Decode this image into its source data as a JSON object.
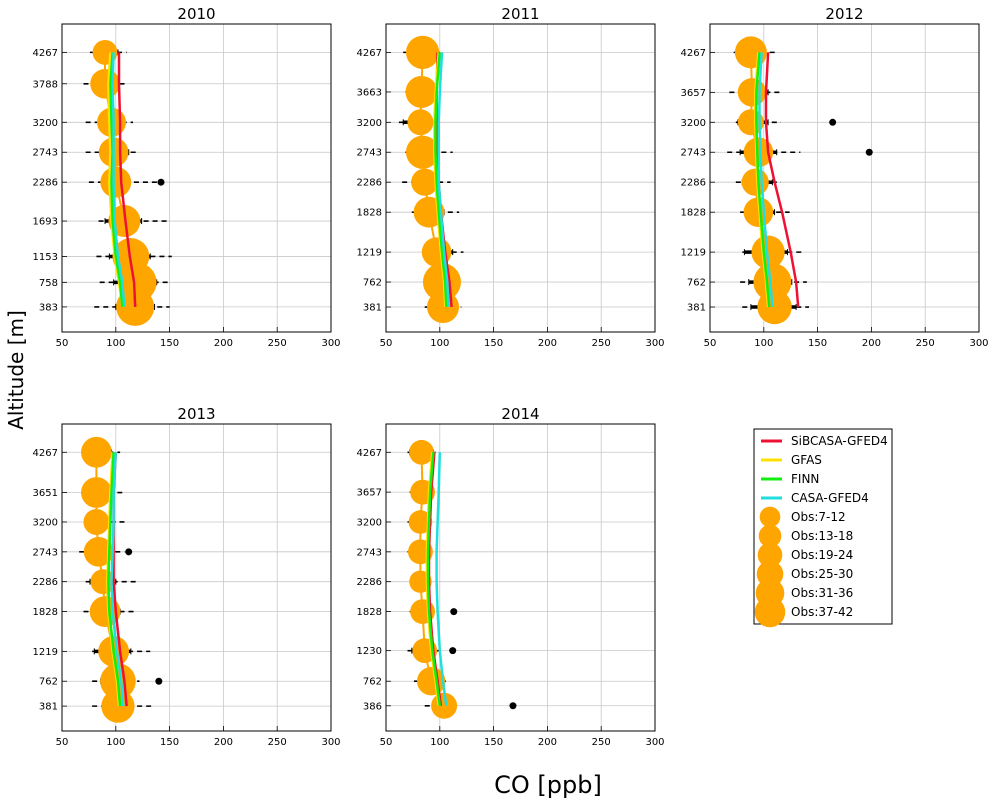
{
  "figure": {
    "xlabel": "CO [ppb]",
    "ylabel": "Altitude [m]"
  },
  "chart_data": [
    {
      "type": "line",
      "title": "2010",
      "xlim": [
        50,
        300
      ],
      "xticks": [
        50,
        100,
        150,
        200,
        250,
        300
      ],
      "ylim": [
        0,
        4700
      ],
      "altitudes": [
        383,
        758,
        1153,
        1693,
        2286,
        2743,
        3200,
        3788,
        4267
      ],
      "series": [
        {
          "name": "SiBCASA-GFED4",
          "color": "#ee1133",
          "values": [
            118,
            117,
            113,
            109,
            105,
            104,
            104,
            103,
            103
          ]
        },
        {
          "name": "GFAS",
          "color": "#ffe000",
          "values": [
            106,
            103,
            99,
            96,
            94,
            95,
            94,
            93,
            95
          ]
        },
        {
          "name": "FINN",
          "color": "#11ee11",
          "values": [
            106,
            104,
            100,
            97,
            96,
            97,
            96,
            95,
            97
          ]
        },
        {
          "name": "CASA-GFED4",
          "color": "#22dddd",
          "values": [
            108,
            106,
            102,
            99,
            98,
            98,
            98,
            97,
            98
          ]
        }
      ],
      "obs": [
        {
          "alt": 383,
          "mean": 118,
          "n": 40,
          "err": [
            100,
            136
          ],
          "whisker": [
            80,
            150
          ]
        },
        {
          "alt": 758,
          "mean": 120,
          "n": 41,
          "err": [
            98,
            138
          ],
          "whisker": [
            85,
            150
          ]
        },
        {
          "alt": 1153,
          "mean": 114,
          "n": 38,
          "err": [
            94,
            132
          ],
          "whisker": [
            82,
            152
          ]
        },
        {
          "alt": 1693,
          "mean": 108,
          "n": 30,
          "err": [
            90,
            124
          ],
          "whisker": [
            84,
            148
          ]
        },
        {
          "alt": 2286,
          "mean": 100,
          "n": 28,
          "err": [
            87,
            112
          ],
          "whisker": [
            75,
            140
          ]
        },
        {
          "alt": 2743,
          "mean": 98,
          "n": 26,
          "err": [
            86,
            112
          ],
          "whisker": [
            72,
            122
          ]
        },
        {
          "alt": 3200,
          "mean": 96,
          "n": 25,
          "err": [
            85,
            108
          ],
          "whisker": [
            72,
            116
          ]
        },
        {
          "alt": 3788,
          "mean": 90,
          "n": 26,
          "err": [
            80,
            102
          ],
          "whisker": [
            70,
            110
          ]
        },
        {
          "alt": 4267,
          "mean": 90,
          "n": 18,
          "err": [
            80,
            102
          ],
          "whisker": [
            76,
            110
          ]
        }
      ],
      "outliers": [
        {
          "alt": 2286,
          "value": 142
        }
      ]
    },
    {
      "type": "line",
      "title": "2011",
      "xlim": [
        50,
        300
      ],
      "xticks": [
        50,
        100,
        150,
        200,
        250,
        300
      ],
      "ylim": [
        0,
        4700
      ],
      "altitudes": [
        381,
        762,
        1219,
        1828,
        2286,
        2743,
        3200,
        3663,
        4267
      ],
      "series": [
        {
          "name": "SiBCASA-GFED4",
          "color": "#ee1133",
          "values": [
            111,
            109,
            105,
            101,
            99,
            98,
            97,
            97,
            98
          ]
        },
        {
          "name": "GFAS",
          "color": "#ffe000",
          "values": [
            105,
            104,
            101,
            98,
            96,
            95,
            95,
            96,
            99
          ]
        },
        {
          "name": "FINN",
          "color": "#11ee11",
          "values": [
            106,
            105,
            102,
            99,
            97,
            96,
            96,
            97,
            100
          ]
        },
        {
          "name": "CASA-GFED4",
          "color": "#22dddd",
          "values": [
            108,
            107,
            104,
            101,
            99,
            99,
            99,
            100,
            102
          ]
        }
      ],
      "obs": [
        {
          "alt": 381,
          "mean": 103,
          "n": 30,
          "err": [
            92,
            114
          ],
          "whisker": [
            86,
            120
          ]
        },
        {
          "alt": 762,
          "mean": 102,
          "n": 40,
          "err": [
            90,
            112
          ],
          "whisker": [
            88,
            116
          ]
        },
        {
          "alt": 1219,
          "mean": 97,
          "n": 26,
          "err": [
            88,
            112
          ],
          "whisker": [
            86,
            122
          ]
        },
        {
          "alt": 1828,
          "mean": 90,
          "n": 28,
          "err": [
            80,
            104
          ],
          "whisker": [
            74,
            118
          ]
        },
        {
          "alt": 2286,
          "mean": 86,
          "n": 22,
          "err": [
            77,
            98
          ],
          "whisker": [
            65,
            110
          ]
        },
        {
          "alt": 2743,
          "mean": 84,
          "n": 32,
          "err": [
            72,
            98
          ],
          "whisker": [
            68,
            112
          ]
        },
        {
          "alt": 3200,
          "mean": 82,
          "n": 20,
          "err": [
            66,
            96
          ],
          "whisker": [
            62,
            100
          ]
        },
        {
          "alt": 3663,
          "mean": 83,
          "n": 30,
          "err": [
            70,
            97
          ],
          "whisker": [
            68,
            100
          ]
        },
        {
          "alt": 4267,
          "mean": 84,
          "n": 32,
          "err": [
            72,
            97
          ],
          "whisker": [
            66,
            100
          ]
        }
      ],
      "outliers": []
    },
    {
      "type": "line",
      "title": "2012",
      "xlim": [
        50,
        300
      ],
      "xticks": [
        50,
        100,
        150,
        200,
        250,
        300
      ],
      "ylim": [
        0,
        4700
      ],
      "altitudes": [
        381,
        762,
        1219,
        1828,
        2286,
        2743,
        3200,
        3657,
        4267
      ],
      "series": [
        {
          "name": "SiBCASA-GFED4",
          "color": "#ee1133",
          "values": [
            132,
            130,
            125,
            117,
            110,
            104,
            102,
            102,
            104
          ]
        },
        {
          "name": "GFAS",
          "color": "#ffe000",
          "values": [
            104,
            102,
            99,
            96,
            94,
            93,
            92,
            92,
            95
          ]
        },
        {
          "name": "FINN",
          "color": "#11ee11",
          "values": [
            105,
            103,
            100,
            97,
            95,
            94,
            93,
            93,
            96
          ]
        },
        {
          "name": "CASA-GFED4",
          "color": "#22dddd",
          "values": [
            108,
            106,
            103,
            100,
            98,
            97,
            96,
            96,
            98
          ]
        }
      ],
      "obs": [
        {
          "alt": 381,
          "mean": 110,
          "n": 34,
          "err": [
            88,
            130
          ],
          "whisker": [
            80,
            142
          ]
        },
        {
          "alt": 762,
          "mean": 108,
          "n": 40,
          "err": [
            86,
            126
          ],
          "whisker": [
            78,
            140
          ]
        },
        {
          "alt": 1219,
          "mean": 104,
          "n": 32,
          "err": [
            82,
            122
          ],
          "whisker": [
            80,
            138
          ]
        },
        {
          "alt": 1828,
          "mean": 95,
          "n": 26,
          "err": [
            82,
            110
          ],
          "whisker": [
            78,
            124
          ]
        },
        {
          "alt": 2286,
          "mean": 92,
          "n": 22,
          "err": [
            80,
            108
          ],
          "whisker": [
            74,
            116
          ]
        },
        {
          "alt": 2743,
          "mean": 95,
          "n": 26,
          "err": [
            78,
            112
          ],
          "whisker": [
            66,
            134
          ]
        },
        {
          "alt": 3200,
          "mean": 88,
          "n": 20,
          "err": [
            76,
            104
          ],
          "whisker": [
            74,
            116
          ]
        },
        {
          "alt": 3657,
          "mean": 89,
          "n": 24,
          "err": [
            78,
            104
          ],
          "whisker": [
            68,
            118
          ]
        },
        {
          "alt": 4267,
          "mean": 88,
          "n": 30,
          "err": [
            76,
            102
          ],
          "whisker": [
            72,
            112
          ]
        }
      ],
      "outliers": [
        {
          "alt": 3200,
          "value": 164
        },
        {
          "alt": 2743,
          "value": 198
        }
      ]
    },
    {
      "type": "line",
      "title": "2013",
      "xlim": [
        50,
        300
      ],
      "xticks": [
        50,
        100,
        150,
        200,
        250,
        300
      ],
      "ylim": [
        0,
        4700
      ],
      "altitudes": [
        381,
        762,
        1219,
        1828,
        2286,
        2743,
        3200,
        3651,
        4267
      ],
      "series": [
        {
          "name": "SiBCASA-GFED4",
          "color": "#ee1133",
          "values": [
            110,
            108,
            104,
            100,
            98,
            98,
            98,
            98,
            100
          ]
        },
        {
          "name": "GFAS",
          "color": "#ffe000",
          "values": [
            103,
            101,
            97,
            93,
            92,
            93,
            94,
            95,
            97
          ]
        },
        {
          "name": "FINN",
          "color": "#11ee11",
          "values": [
            104,
            102,
            98,
            94,
            93,
            94,
            95,
            96,
            98
          ]
        },
        {
          "name": "CASA-GFED4",
          "color": "#22dddd",
          "values": [
            107,
            105,
            101,
            97,
            96,
            97,
            98,
            98,
            100
          ]
        }
      ],
      "obs": [
        {
          "alt": 381,
          "mean": 102,
          "n": 32,
          "err": [
            88,
            116
          ],
          "whisker": [
            78,
            136
          ]
        },
        {
          "alt": 762,
          "mean": 102,
          "n": 36,
          "err": [
            86,
            116
          ],
          "whisker": [
            78,
            122
          ]
        },
        {
          "alt": 1219,
          "mean": 98,
          "n": 28,
          "err": [
            80,
            114
          ],
          "whisker": [
            78,
            132
          ]
        },
        {
          "alt": 1828,
          "mean": 90,
          "n": 28,
          "err": [
            78,
            104
          ],
          "whisker": [
            70,
            120
          ]
        },
        {
          "alt": 2286,
          "mean": 88,
          "n": 18,
          "err": [
            76,
            100
          ],
          "whisker": [
            72,
            120
          ]
        },
        {
          "alt": 2743,
          "mean": 84,
          "n": 26,
          "err": [
            72,
            98
          ],
          "whisker": [
            66,
            108
          ]
        },
        {
          "alt": 3200,
          "mean": 82,
          "n": 20,
          "err": [
            72,
            94
          ],
          "whisker": [
            70,
            108
          ]
        },
        {
          "alt": 3651,
          "mean": 82,
          "n": 28,
          "err": [
            70,
            96
          ],
          "whisker": [
            68,
            106
          ]
        },
        {
          "alt": 4267,
          "mean": 82,
          "n": 28,
          "err": [
            70,
            96
          ],
          "whisker": [
            68,
            104
          ]
        }
      ],
      "outliers": [
        {
          "alt": 2743,
          "value": 112
        },
        {
          "alt": 762,
          "value": 140
        }
      ]
    },
    {
      "type": "line",
      "title": "2014",
      "xlim": [
        50,
        300
      ],
      "xticks": [
        50,
        100,
        150,
        200,
        250,
        300
      ],
      "ylim": [
        0,
        4700
      ],
      "altitudes": [
        386,
        762,
        1230,
        1828,
        2286,
        2743,
        3200,
        3657,
        4267
      ],
      "series": [
        {
          "name": "SiBCASA-GFED4",
          "color": "#ee1133",
          "values": [
            101,
            98,
            94,
            91,
            90,
            90,
            91,
            92,
            95
          ]
        },
        {
          "name": "GFAS",
          "color": "#ffe000",
          "values": [
            99,
            96,
            92,
            89,
            88,
            88,
            89,
            90,
            93
          ]
        },
        {
          "name": "FINN",
          "color": "#11ee11",
          "values": [
            100,
            97,
            93,
            90,
            89,
            89,
            90,
            91,
            94
          ]
        },
        {
          "name": "CASA-GFED4",
          "color": "#22dddd",
          "values": [
            106,
            103,
            100,
            98,
            97,
            97,
            98,
            99,
            100
          ]
        }
      ],
      "obs": [
        {
          "alt": 386,
          "mean": 104,
          "n": 20,
          "err": [
            94,
            112
          ],
          "whisker": [
            86,
            116
          ]
        },
        {
          "alt": 762,
          "mean": 92,
          "n": 24,
          "err": [
            80,
            104
          ],
          "whisker": [
            76,
            108
          ]
        },
        {
          "alt": 1230,
          "mean": 86,
          "n": 18,
          "err": [
            74,
            96
          ],
          "whisker": [
            70,
            100
          ]
        },
        {
          "alt": 1828,
          "mean": 84,
          "n": 18,
          "err": [
            74,
            94
          ],
          "whisker": [
            72,
            98
          ]
        },
        {
          "alt": 2286,
          "mean": 82,
          "n": 14,
          "err": [
            74,
            90
          ],
          "whisker": [
            72,
            92
          ]
        },
        {
          "alt": 2743,
          "mean": 82,
          "n": 18,
          "err": [
            74,
            92
          ],
          "whisker": [
            70,
            94
          ]
        },
        {
          "alt": 3200,
          "mean": 82,
          "n": 16,
          "err": [
            72,
            92
          ],
          "whisker": [
            70,
            94
          ]
        },
        {
          "alt": 3657,
          "mean": 84,
          "n": 18,
          "err": [
            74,
            94
          ],
          "whisker": [
            72,
            96
          ]
        },
        {
          "alt": 4267,
          "mean": 83,
          "n": 18,
          "err": [
            72,
            94
          ],
          "whisker": [
            70,
            96
          ]
        }
      ],
      "outliers": [
        {
          "alt": 1828,
          "value": 113
        },
        {
          "alt": 1230,
          "value": 112
        },
        {
          "alt": 386,
          "value": 168
        }
      ]
    }
  ],
  "legend": {
    "placement": "right of bottom row",
    "lines": [
      {
        "label": "SiBCASA-GFED4",
        "color": "#ee1133"
      },
      {
        "label": "GFAS",
        "color": "#ffe000"
      },
      {
        "label": "FINN",
        "color": "#11ee11"
      },
      {
        "label": "CASA-GFED4",
        "color": "#22dddd"
      }
    ],
    "markers": [
      {
        "label": "Obs:7-12",
        "n": 9
      },
      {
        "label": "Obs:13-18",
        "n": 15
      },
      {
        "label": "Obs:19-24",
        "n": 21
      },
      {
        "label": "Obs:25-30",
        "n": 27
      },
      {
        "label": "Obs:31-36",
        "n": 33
      },
      {
        "label": "Obs:37-42",
        "n": 39
      }
    ],
    "marker_color": "#ffa500"
  }
}
